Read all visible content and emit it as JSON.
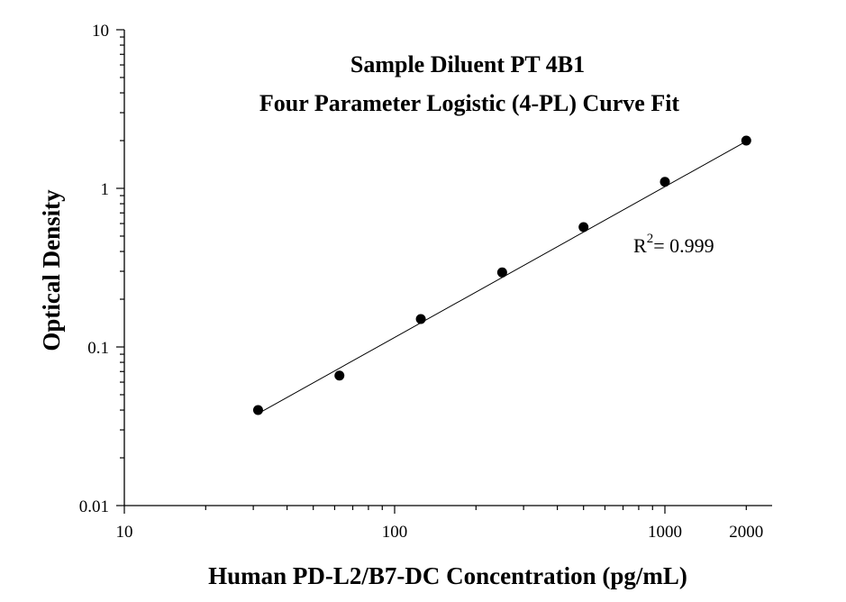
{
  "chart_data": {
    "type": "scatter",
    "title": "Sample Diluent PT 4B1",
    "subtitle": "Four Parameter Logistic (4-PL) Curve Fit",
    "xlabel": "Human PD-L2/B7-DC Concentration (pg/mL)",
    "ylabel": "Optical Density",
    "xscale": "log",
    "yscale": "log",
    "xlim": [
      10,
      2500
    ],
    "ylim": [
      0.01,
      10
    ],
    "x_tick_labels": [
      "10",
      "100",
      "1000",
      "2000"
    ],
    "x_tick_values": [
      10,
      100,
      1000,
      2000
    ],
    "y_tick_labels": [
      "0.01",
      "0.1",
      "1",
      "10"
    ],
    "y_tick_values": [
      0.01,
      0.1,
      1,
      10
    ],
    "grid": false,
    "series": [
      {
        "x": [
          31.25,
          62.5,
          125,
          250,
          500,
          1000,
          2000
        ],
        "y": [
          0.04,
          0.066,
          0.15,
          0.295,
          0.57,
          1.1,
          2.0
        ]
      }
    ],
    "fit_line": {
      "x": [
        31.25,
        2000
      ],
      "y": [
        0.038,
        1.98
      ]
    },
    "annotation": {
      "prefix": "R",
      "superscript": "2",
      "text": "= 0.999"
    }
  }
}
